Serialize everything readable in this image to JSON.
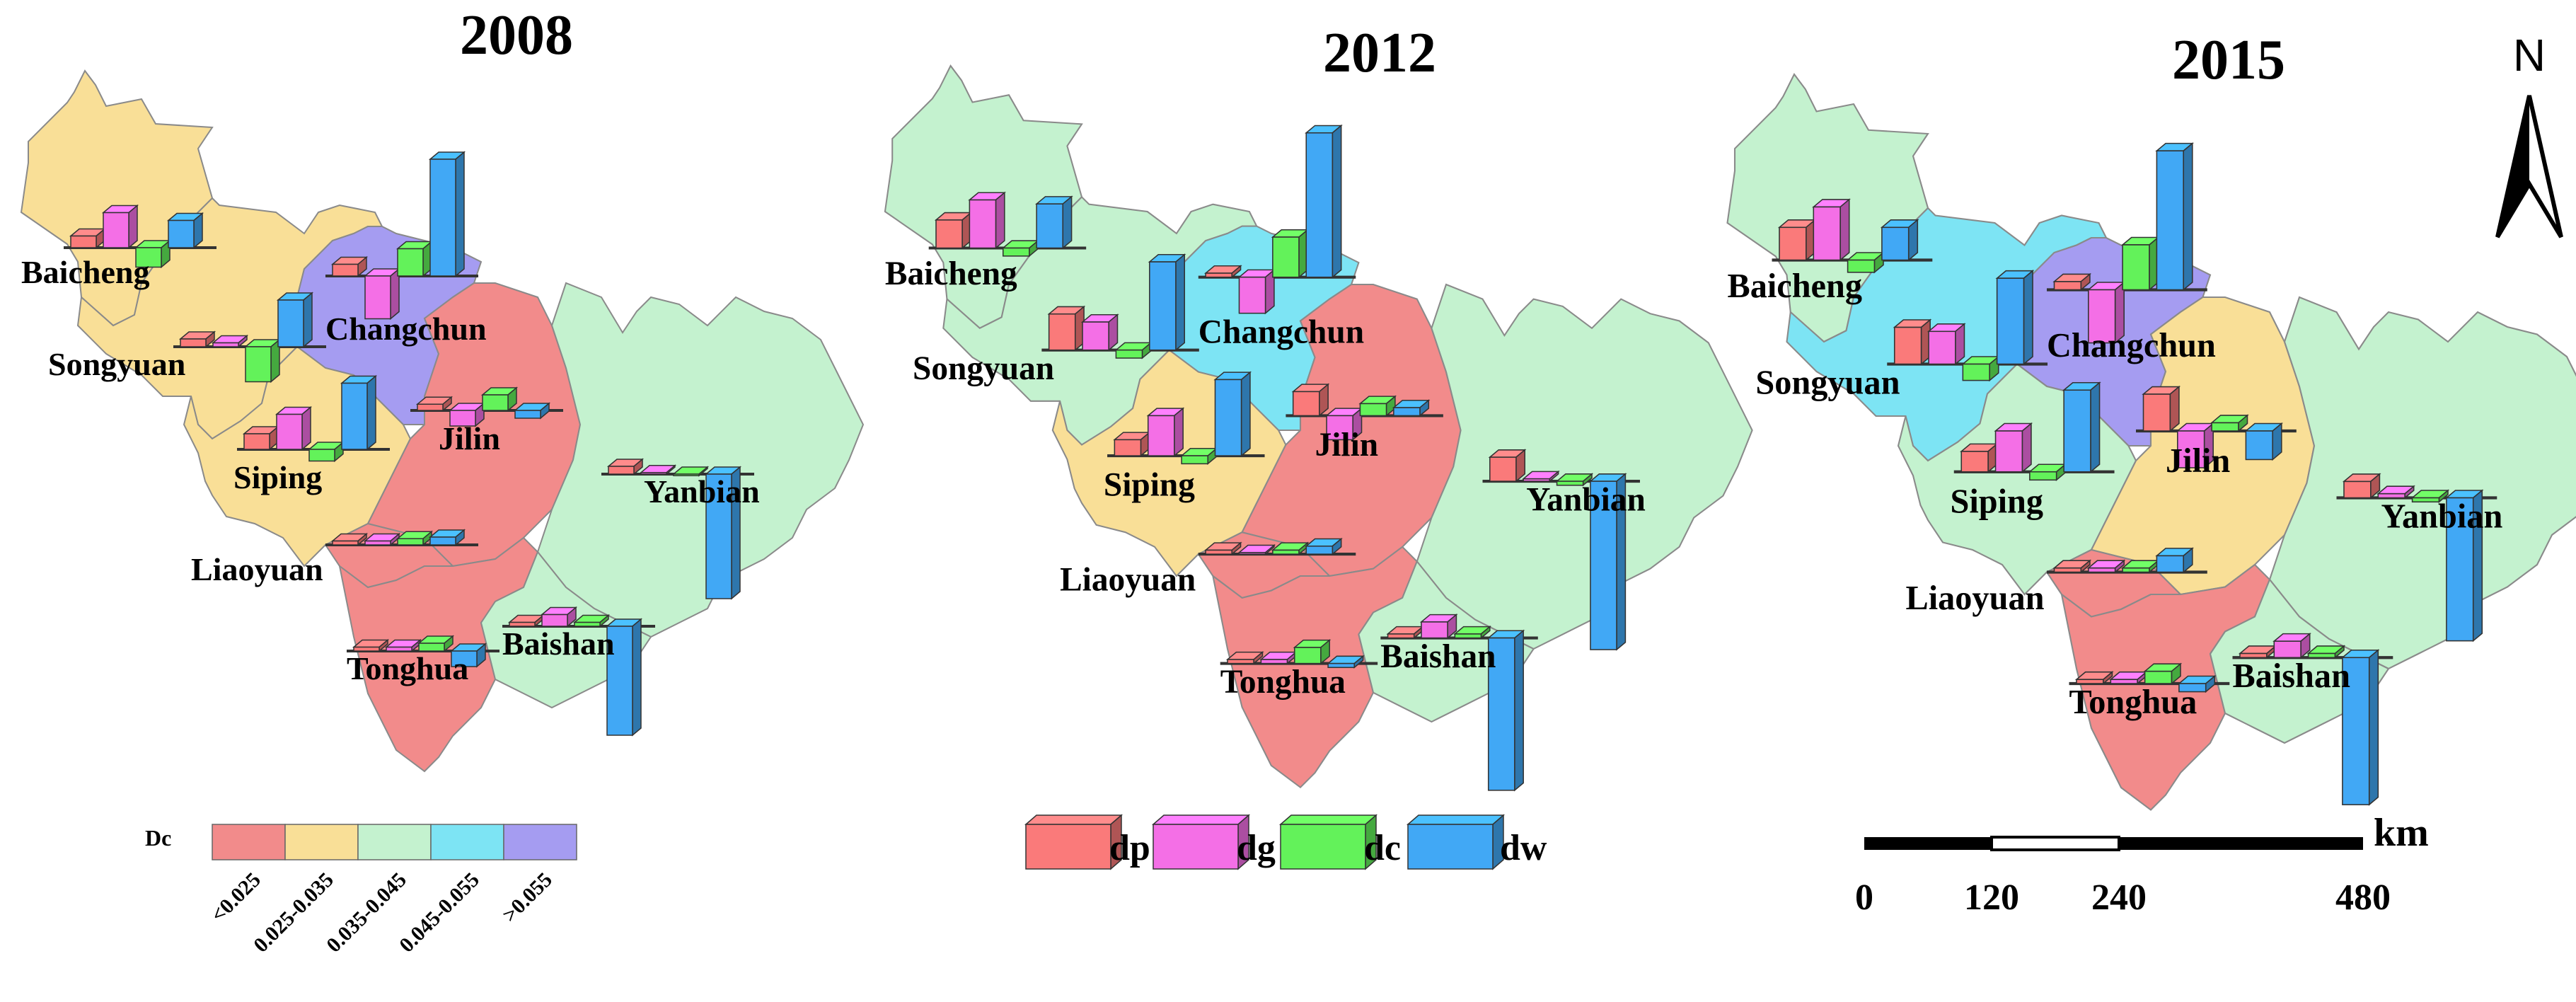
{
  "years": [
    "2008",
    "2012",
    "2015"
  ],
  "north_label": "N",
  "legend_dc": {
    "title": "Dc",
    "classes": [
      {
        "label": "<0.025",
        "color": "#f28b8b"
      },
      {
        "label": "0.025-0.035",
        "color": "#f9df97"
      },
      {
        "label": "0.035-0.045",
        "color": "#c4f2cf"
      },
      {
        "label": "0.045-0.055",
        "color": "#7de4f4"
      },
      {
        "label": ">0.055",
        "color": "#a59cf1"
      }
    ]
  },
  "legend_bars": [
    {
      "label": "dp",
      "color": "#fa7a7a"
    },
    {
      "label": "dg",
      "color": "#f46fe6"
    },
    {
      "label": "dc",
      "color": "#63f25a"
    },
    {
      "label": "dw",
      "color": "#41a8f5"
    }
  ],
  "scale_bar": {
    "unit": "km",
    "ticks": [
      "0",
      "120",
      "240",
      "480"
    ]
  },
  "regions": [
    "Baicheng",
    "Songyuan",
    "Changchun",
    "Siping",
    "Jilin",
    "Liaoyuan",
    "Yanbian",
    "Tonghua",
    "Baishan"
  ],
  "maps": [
    {
      "year": "2008",
      "fill_class": {
        "Baicheng": 1,
        "Songyuan": 1,
        "Changchun": 4,
        "Siping": 1,
        "Jilin": 0,
        "Liaoyuan": 0,
        "Yanbian": 2,
        "Tonghua": 0,
        "Baishan": 2
      },
      "bars": {
        "Baicheng": {
          "dp": 0.15,
          "dg": 0.45,
          "dc": -0.25,
          "dw": 0.35
        },
        "Songyuan": {
          "dp": 0.1,
          "dg": 0.05,
          "dc": -0.45,
          "dw": 0.6
        },
        "Changchun": {
          "dp": 0.15,
          "dg": -0.55,
          "dc": 0.35,
          "dw": 1.5
        },
        "Siping": {
          "dp": 0.2,
          "dg": 0.45,
          "dc": -0.15,
          "dw": 0.85
        },
        "Jilin": {
          "dp": 0.08,
          "dg": -0.2,
          "dc": 0.2,
          "dw": -0.1
        },
        "Liaoyuan": {
          "dp": 0.05,
          "dg": 0.05,
          "dc": 0.08,
          "dw": 0.1
        },
        "Yanbian": {
          "dp": 0.1,
          "dg": 0.02,
          "dc": -0.02,
          "dw": -1.6
        },
        "Tonghua": {
          "dp": 0.05,
          "dg": 0.05,
          "dc": 0.1,
          "dw": -0.2
        },
        "Baishan": {
          "dp": 0.05,
          "dg": 0.15,
          "dc": 0.05,
          "dw": -1.4
        }
      }
    },
    {
      "year": "2012",
      "fill_class": {
        "Baicheng": 2,
        "Songyuan": 2,
        "Changchun": 3,
        "Siping": 1,
        "Jilin": 0,
        "Liaoyuan": 0,
        "Yanbian": 2,
        "Tonghua": 0,
        "Baishan": 2
      },
      "bars": {
        "Baicheng": {
          "dp": 0.35,
          "dg": 0.6,
          "dc": -0.1,
          "dw": 0.55
        },
        "Songyuan": {
          "dp": 0.45,
          "dg": 0.35,
          "dc": -0.1,
          "dw": 1.1
        },
        "Changchun": {
          "dp": 0.05,
          "dg": -0.45,
          "dc": 0.5,
          "dw": 1.8
        },
        "Siping": {
          "dp": 0.2,
          "dg": 0.5,
          "dc": -0.1,
          "dw": 0.95
        },
        "Jilin": {
          "dp": 0.3,
          "dg": -0.3,
          "dc": 0.15,
          "dw": 0.1
        },
        "Liaoyuan": {
          "dp": 0.05,
          "dg": 0.02,
          "dc": 0.05,
          "dw": 0.1
        },
        "Yanbian": {
          "dp": 0.3,
          "dg": 0.03,
          "dc": -0.05,
          "dw": -2.1
        },
        "Tonghua": {
          "dp": 0.05,
          "dg": 0.05,
          "dc": 0.2,
          "dw": -0.05
        },
        "Baishan": {
          "dp": 0.05,
          "dg": 0.2,
          "dc": 0.05,
          "dw": -1.9
        }
      }
    },
    {
      "year": "2015",
      "fill_class": {
        "Baicheng": 2,
        "Songyuan": 3,
        "Changchun": 4,
        "Siping": 2,
        "Jilin": 1,
        "Liaoyuan": 0,
        "Yanbian": 2,
        "Tonghua": 0,
        "Baishan": 2
      },
      "bars": {
        "Baicheng": {
          "dp": 0.4,
          "dg": 0.65,
          "dc": -0.15,
          "dw": 0.4
        },
        "Songyuan": {
          "dp": 0.45,
          "dg": 0.4,
          "dc": -0.2,
          "dw": 1.05
        },
        "Changchun": {
          "dp": 0.1,
          "dg": -0.65,
          "dc": 0.55,
          "dw": 1.7
        },
        "Siping": {
          "dp": 0.25,
          "dg": 0.5,
          "dc": -0.1,
          "dw": 1.0
        },
        "Jilin": {
          "dp": 0.45,
          "dg": -0.45,
          "dc": 0.1,
          "dw": -0.35
        },
        "Liaoyuan": {
          "dp": 0.05,
          "dg": 0.05,
          "dc": 0.05,
          "dw": 0.2
        },
        "Yanbian": {
          "dp": 0.2,
          "dg": 0.05,
          "dc": -0.05,
          "dw": -1.75
        },
        "Tonghua": {
          "dp": 0.05,
          "dg": 0.05,
          "dc": 0.15,
          "dw": -0.1
        },
        "Baishan": {
          "dp": 0.05,
          "dg": 0.2,
          "dc": 0.05,
          "dw": -1.8
        }
      }
    }
  ]
}
